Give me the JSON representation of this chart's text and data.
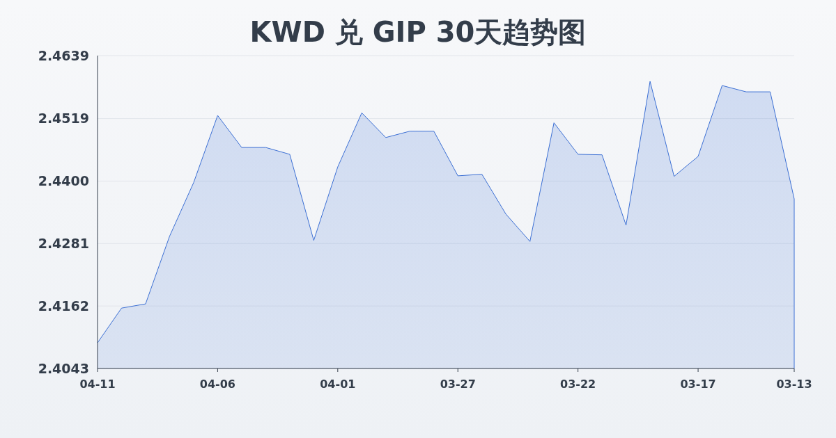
{
  "chart_data": {
    "type": "area",
    "title": "KWD 兑 GIP 30天趋势图",
    "categories": [
      "04-11",
      null,
      null,
      null,
      null,
      "04-06",
      null,
      null,
      null,
      null,
      "04-01",
      null,
      null,
      null,
      null,
      "03-27",
      null,
      null,
      null,
      null,
      "03-22",
      null,
      null,
      null,
      null,
      "03-17",
      null,
      null,
      null,
      "03-13"
    ],
    "series": [
      {
        "color": "#3b6fd4",
        "values": [
          2.4092,
          2.4158,
          2.4166,
          2.4295,
          2.4397,
          2.4525,
          2.4464,
          2.4464,
          2.4451,
          2.4287,
          2.4427,
          2.453,
          2.4483,
          2.4495,
          2.4495,
          2.441,
          2.4413,
          2.4337,
          2.4285,
          2.4511,
          2.4451,
          2.445,
          2.4316,
          2.459,
          2.4409,
          2.4447,
          2.4582,
          2.457,
          2.457,
          2.4366
        ]
      }
    ],
    "ylim": [
      2.4043,
      2.4639
    ],
    "yticks": [
      2.4043,
      2.4162,
      2.4281,
      {
        "value": 2.44,
        "label": "2.4400"
      },
      2.4519,
      2.4639
    ],
    "grid": "y"
  }
}
